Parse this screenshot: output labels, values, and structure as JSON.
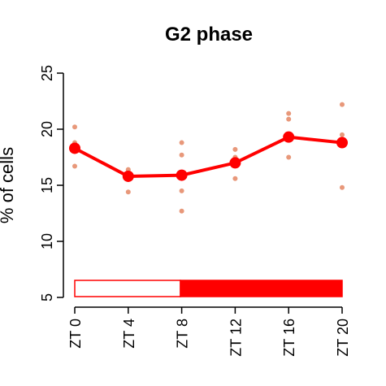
{
  "chart_data": {
    "type": "line",
    "title": "G2 phase",
    "y_label": "% of cells",
    "categories": [
      "ZT 0",
      "ZT 4",
      "ZT 8",
      "ZT 12",
      "ZT 16",
      "ZT 20"
    ],
    "series": [
      {
        "color": "#ff0000",
        "values": [
          18.3,
          15.8,
          15.9,
          17.0,
          19.3,
          18.8
        ]
      }
    ],
    "replicates": [
      [
        20.2,
        18.8,
        18.5,
        16.7
      ],
      [
        16.4,
        16.2,
        14.4
      ],
      [
        18.8,
        17.7,
        14.5,
        12.7
      ],
      [
        18.2,
        17.5,
        17.2,
        15.6
      ],
      [
        21.4,
        20.9,
        17.5
      ],
      [
        22.2,
        19.5,
        18.9,
        14.8
      ]
    ],
    "replicate_color": "#e8987a",
    "ylim": [
      5,
      25
    ],
    "yticks": [
      5,
      10,
      15,
      20,
      25
    ]
  }
}
